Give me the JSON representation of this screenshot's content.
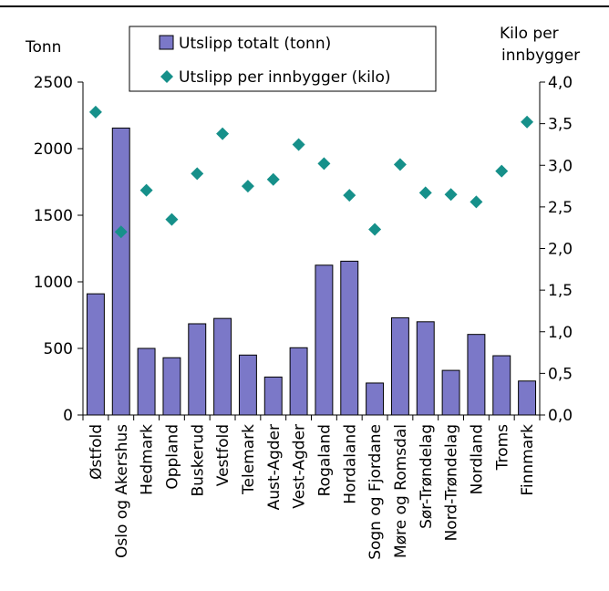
{
  "chart_data": {
    "type": "bar",
    "categories": [
      "Østfold",
      "Oslo og Akershus",
      "Hedmark",
      "Oppland",
      "Buskerud",
      "Vestfold",
      "Telemark",
      "Aust-Agder",
      "Vest-Agder",
      "Rogaland",
      "Hordaland",
      "Sogn og Fjordane",
      "Møre og Romsdal",
      "Sør-Trøndelag",
      "Nord-Trøndelag",
      "Nordland",
      "Troms",
      "Finnmark"
    ],
    "series": [
      {
        "name": "Utslipp totalt (tonn)",
        "type": "bar",
        "axis": "left",
        "color": "#7b78c8",
        "values": [
          910,
          2155,
          500,
          430,
          685,
          725,
          450,
          285,
          505,
          1125,
          1155,
          240,
          730,
          700,
          335,
          605,
          445,
          255
        ]
      },
      {
        "name": "Utslipp per innbygger (kilo)",
        "type": "scatter",
        "axis": "right",
        "marker": "diamond",
        "color": "#16908a",
        "values": [
          3.64,
          2.2,
          2.7,
          2.35,
          2.9,
          3.38,
          2.75,
          2.83,
          3.25,
          3.02,
          2.64,
          2.23,
          3.01,
          2.67,
          2.65,
          2.56,
          2.93,
          3.52
        ]
      }
    ],
    "ylabel_left": "Tonn",
    "ylabel_right": "Kilo per innbygger",
    "ylim_left": [
      0,
      2500
    ],
    "ylim_right": [
      0,
      4.0
    ],
    "yticks_left": [
      "0",
      "500",
      "1000",
      "1500",
      "2000",
      "2500"
    ],
    "yticks_right": [
      "0,0",
      "0,5",
      "1,0",
      "1,5",
      "2,0",
      "2,5",
      "3,0",
      "3,5",
      "4,0"
    ],
    "legend_position": "top-center",
    "grid": false
  }
}
